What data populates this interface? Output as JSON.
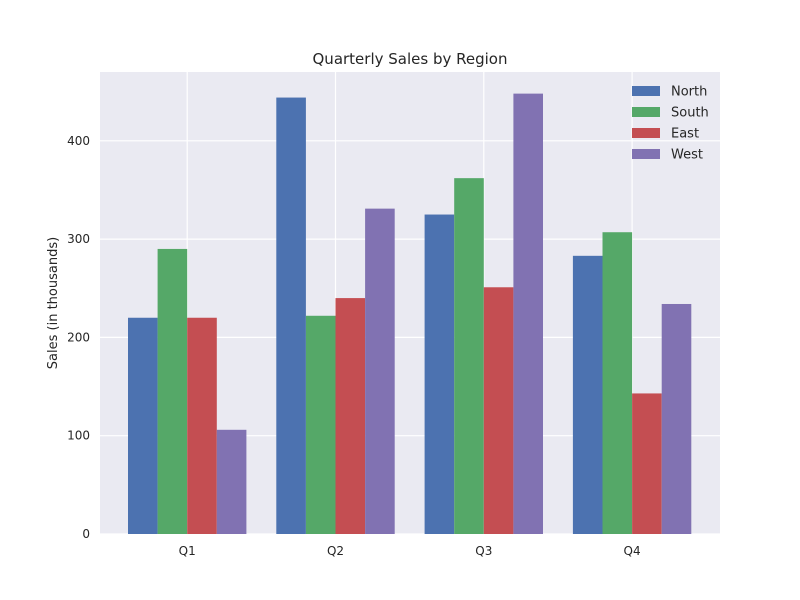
{
  "chart_data": {
    "type": "bar",
    "title": "Quarterly Sales by Region",
    "xlabel": "",
    "ylabel": "Sales (in thousands)",
    "ylim": [
      0,
      470
    ],
    "yticks": [
      0,
      100,
      200,
      300,
      400
    ],
    "categories": [
      "Q1",
      "Q2",
      "Q3",
      "Q4"
    ],
    "series": [
      {
        "name": "North",
        "color": "#4c72b0",
        "values": [
          220,
          444,
          325,
          283
        ]
      },
      {
        "name": "South",
        "color": "#55a868",
        "values": [
          290,
          222,
          362,
          307
        ]
      },
      {
        "name": "East",
        "color": "#c44e52",
        "values": [
          220,
          240,
          251,
          143
        ]
      },
      {
        "name": "West",
        "color": "#8172b2",
        "values": [
          106,
          331,
          448,
          234
        ]
      }
    ],
    "grid": true,
    "legend_position": "top-right",
    "background_color": "#eaeaf2"
  }
}
